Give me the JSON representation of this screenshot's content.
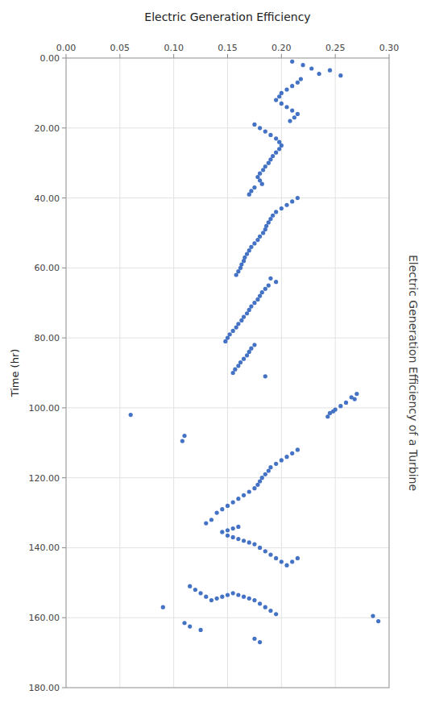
{
  "chart_data": {
    "type": "scatter",
    "x_label": "Electric Generation Efficiency",
    "y_label": "Time (hr)",
    "annotations": [
      "Electric Generation Efficiency of a Turbine"
    ],
    "color": "#4472C4",
    "grid": true,
    "xlim": [
      0.0,
      0.3
    ],
    "ylim": [
      180.0,
      0.0
    ],
    "xticks": [
      {
        "value": 0.0,
        "label": "0.00"
      },
      {
        "value": 0.05,
        "label": "0.05"
      },
      {
        "value": 0.1,
        "label": "0.10"
      },
      {
        "value": 0.15,
        "label": "0.15"
      },
      {
        "value": 0.2,
        "label": "0.20"
      },
      {
        "value": 0.25,
        "label": "0.25"
      },
      {
        "value": 0.3,
        "label": "0.30"
      }
    ],
    "yticks": [
      {
        "value": 0.0,
        "label": "0.00"
      },
      {
        "value": 20.0,
        "label": "20.00"
      },
      {
        "value": 40.0,
        "label": "40.00"
      },
      {
        "value": 60.0,
        "label": "60.00"
      },
      {
        "value": 80.0,
        "label": "80.00"
      },
      {
        "value": 100.0,
        "label": "100.00"
      },
      {
        "value": 120.0,
        "label": "120.00"
      },
      {
        "value": 140.0,
        "label": "140.00"
      },
      {
        "value": 160.0,
        "label": "160.00"
      },
      {
        "value": 180.0,
        "label": "180.00"
      }
    ],
    "x": [
      0.21,
      0.22,
      0.228,
      0.235,
      0.245,
      0.255,
      0.218,
      0.215,
      0.21,
      0.205,
      0.2,
      0.198,
      0.195,
      0.2,
      0.205,
      0.21,
      0.215,
      0.212,
      0.208,
      0.175,
      0.18,
      0.185,
      0.19,
      0.195,
      0.198,
      0.2,
      0.198,
      0.195,
      0.192,
      0.19,
      0.188,
      0.185,
      0.183,
      0.18,
      0.178,
      0.18,
      0.182,
      0.175,
      0.172,
      0.17,
      0.215,
      0.21,
      0.205,
      0.2,
      0.195,
      0.192,
      0.19,
      0.188,
      0.186,
      0.185,
      0.183,
      0.18,
      0.178,
      0.175,
      0.172,
      0.17,
      0.168,
      0.166,
      0.165,
      0.163,
      0.162,
      0.16,
      0.158,
      0.19,
      0.195,
      0.188,
      0.185,
      0.182,
      0.18,
      0.178,
      0.175,
      0.172,
      0.17,
      0.168,
      0.165,
      0.163,
      0.16,
      0.158,
      0.155,
      0.152,
      0.15,
      0.148,
      0.175,
      0.172,
      0.17,
      0.168,
      0.165,
      0.162,
      0.16,
      0.157,
      0.155,
      0.185,
      0.06,
      0.11,
      0.108,
      0.27,
      0.265,
      0.268,
      0.26,
      0.255,
      0.25,
      0.248,
      0.245,
      0.243,
      0.195,
      0.19,
      0.188,
      0.185,
      0.182,
      0.18,
      0.178,
      0.2,
      0.205,
      0.21,
      0.215,
      0.175,
      0.17,
      0.165,
      0.16,
      0.155,
      0.15,
      0.145,
      0.14,
      0.135,
      0.13,
      0.16,
      0.155,
      0.15,
      0.145,
      0.15,
      0.155,
      0.16,
      0.165,
      0.17,
      0.175,
      0.18,
      0.185,
      0.19,
      0.195,
      0.2,
      0.205,
      0.21,
      0.215,
      0.115,
      0.12,
      0.125,
      0.13,
      0.135,
      0.14,
      0.145,
      0.15,
      0.155,
      0.16,
      0.165,
      0.17,
      0.175,
      0.18,
      0.185,
      0.19,
      0.195,
      0.285,
      0.11,
      0.115,
      0.125,
      0.09,
      0.175,
      0.18,
      0.29
    ],
    "values": [
      1.0,
      2.0,
      3.0,
      4.5,
      3.5,
      5.0,
      6.0,
      7.0,
      8.0,
      9.0,
      10.0,
      11.0,
      12.0,
      13.0,
      14.0,
      15.0,
      16.0,
      17.0,
      18.0,
      19.0,
      20.0,
      21.0,
      22.0,
      23.0,
      24.0,
      25.0,
      26.0,
      27.0,
      28.0,
      29.0,
      30.0,
      31.0,
      32.0,
      33.0,
      34.0,
      35.0,
      36.0,
      37.0,
      38.0,
      39.0,
      40.0,
      41.0,
      42.0,
      43.0,
      44.0,
      45.0,
      46.0,
      47.0,
      48.0,
      49.0,
      50.0,
      51.0,
      52.0,
      53.0,
      54.0,
      55.0,
      56.0,
      57.0,
      58.0,
      59.0,
      60.0,
      61.0,
      62.0,
      63.0,
      64.0,
      65.0,
      66.0,
      67.0,
      68.0,
      69.0,
      70.0,
      71.0,
      72.0,
      73.0,
      74.0,
      75.0,
      76.0,
      77.0,
      78.0,
      79.0,
      80.0,
      81.0,
      82.0,
      83.0,
      84.0,
      85.0,
      86.0,
      87.0,
      88.0,
      89.0,
      90.0,
      91.0,
      102.0,
      108.0,
      109.5,
      96.0,
      97.0,
      97.5,
      98.5,
      99.5,
      100.5,
      101.0,
      101.5,
      102.5,
      116.0,
      117.0,
      118.0,
      119.0,
      120.0,
      121.0,
      122.0,
      115.0,
      114.0,
      113.0,
      112.0,
      123.0,
      124.0,
      125.0,
      126.0,
      127.0,
      128.0,
      129.0,
      130.0,
      132.0,
      133.0,
      134.0,
      134.5,
      135.0,
      135.5,
      136.5,
      137.0,
      137.5,
      138.0,
      138.5,
      139.0,
      140.0,
      141.0,
      142.0,
      143.0,
      144.0,
      145.0,
      144.0,
      143.0,
      151.0,
      152.0,
      153.0,
      154.0,
      155.0,
      154.5,
      154.0,
      153.5,
      153.0,
      153.5,
      154.0,
      154.5,
      155.0,
      156.0,
      157.0,
      158.0,
      159.0,
      159.5,
      161.5,
      162.5,
      163.5,
      157.0,
      166.0,
      167.0,
      161.0
    ]
  }
}
